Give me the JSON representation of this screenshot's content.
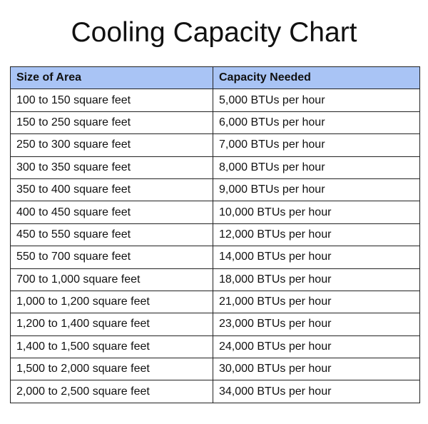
{
  "title": "Cooling Capacity Chart",
  "table": {
    "headers": [
      "Size of Area",
      "Capacity Needed"
    ],
    "rows": [
      [
        "100 to 150 square feet",
        "5,000 BTUs per hour"
      ],
      [
        "150 to 250 square feet",
        "6,000 BTUs per hour"
      ],
      [
        "250 to 300 square feet",
        "7,000 BTUs per hour"
      ],
      [
        "300 to 350 square feet",
        "8,000 BTUs per hour"
      ],
      [
        "350 to 400 square feet",
        "9,000 BTUs per hour"
      ],
      [
        "400 to 450 square feet",
        "10,000 BTUs per hour"
      ],
      [
        "450 to 550 square feet",
        "12,000 BTUs per hour"
      ],
      [
        "550 to 700 square feet",
        "14,000 BTUs per hour"
      ],
      [
        "700 to 1,000 square feet",
        "18,000 BTUs per hour"
      ],
      [
        "1,000 to 1,200 square feet",
        "21,000 BTUs per hour"
      ],
      [
        "1,200 to 1,400 square feet",
        "23,000 BTUs per hour"
      ],
      [
        "1,400 to 1,500 square feet",
        "24,000 BTUs per hour"
      ],
      [
        "1,500 to 2,000 square feet",
        "30,000 BTUs per hour"
      ],
      [
        "2,000 to 2,500 square feet",
        "34,000 BTUs per hour"
      ]
    ]
  },
  "colors": {
    "header_background": "#a9c4f5",
    "border": "#222222",
    "text": "#111111"
  }
}
